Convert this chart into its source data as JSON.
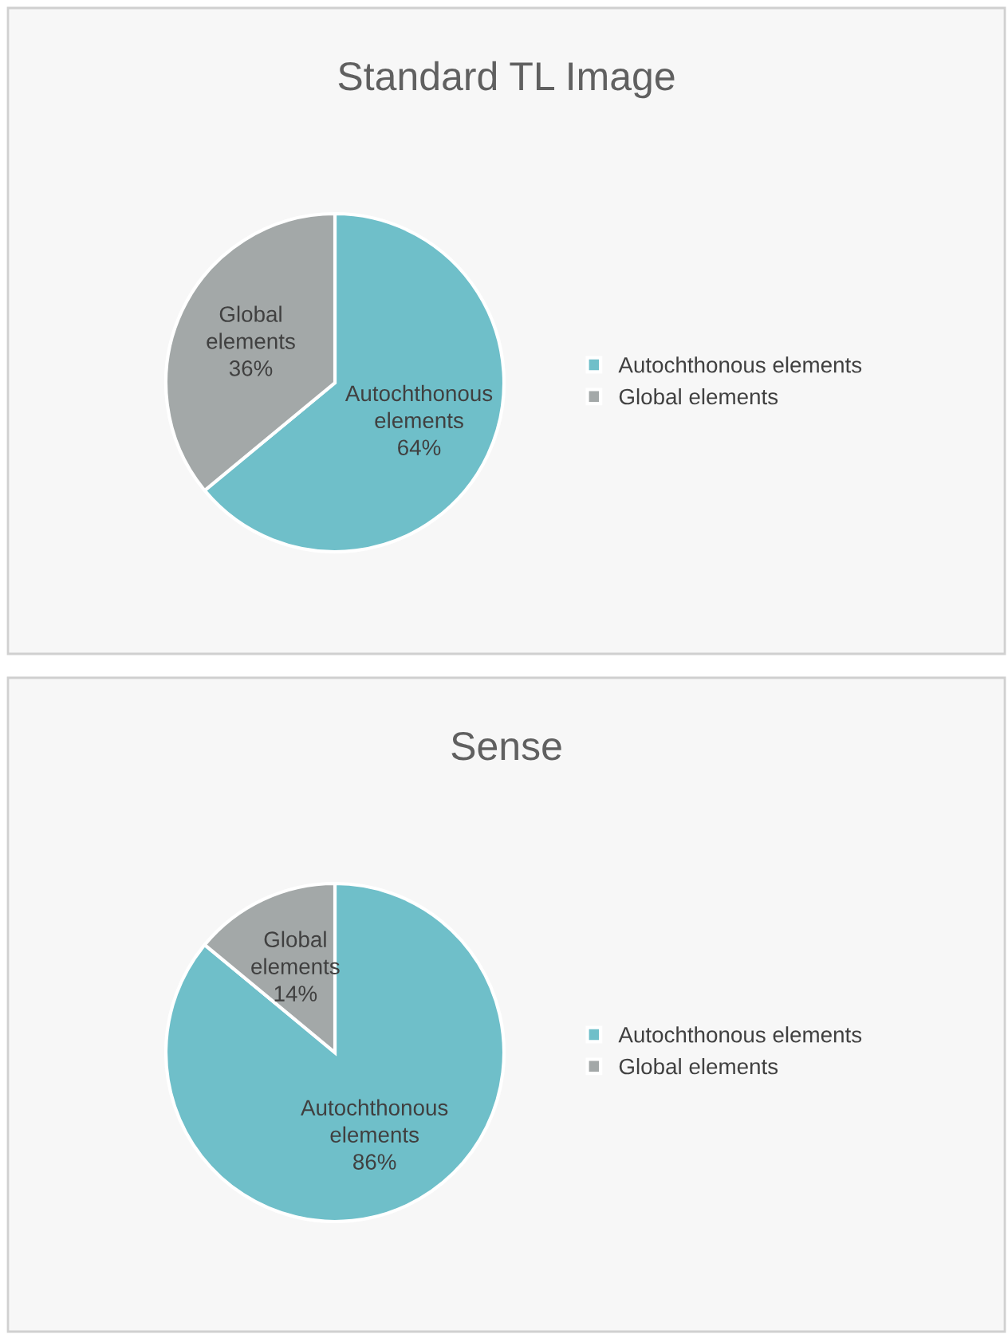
{
  "chart_data": [
    {
      "type": "pie",
      "title": "Standard TL Image",
      "categories": [
        "Autochthonous elements",
        "Global elements"
      ],
      "values": [
        64,
        36
      ],
      "colors": [
        "#6fbfc9",
        "#a3a8a8"
      ],
      "value_labels": [
        "Autochthonous\nelements\n64%",
        "Global\nelements\n36%"
      ],
      "legend": "right"
    },
    {
      "type": "pie",
      "title": "Sense",
      "categories": [
        "Autochthonous elements",
        "Global elements"
      ],
      "values": [
        86,
        14
      ],
      "colors": [
        "#6fbfc9",
        "#a3a8a8"
      ],
      "value_labels": [
        "Autochthonous\nelements\n86%",
        "Global\nelements\n14%"
      ],
      "legend": "right"
    }
  ]
}
